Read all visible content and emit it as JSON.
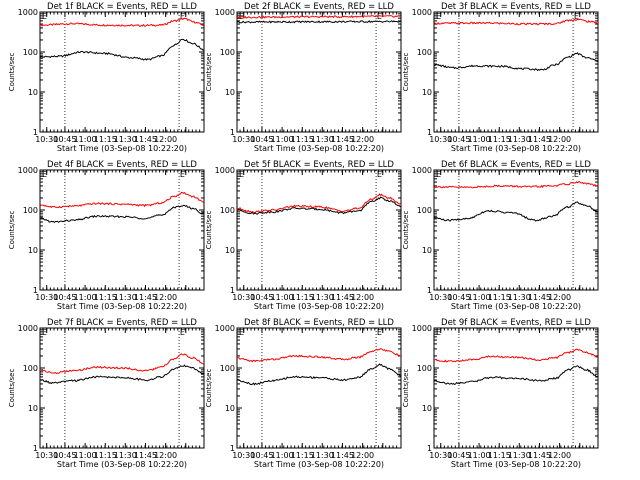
{
  "chart_data": [
    {
      "title": "Det 1f BLACK = Events, RED = LLD",
      "type": "line",
      "black": [
        [
          0,
          75
        ],
        [
          0.12,
          78
        ],
        [
          0.25,
          100
        ],
        [
          0.4,
          92
        ],
        [
          0.55,
          72
        ],
        [
          0.66,
          65
        ],
        [
          0.74,
          80
        ],
        [
          0.82,
          150
        ],
        [
          0.87,
          210
        ],
        [
          0.93,
          165
        ],
        [
          1,
          115
        ]
      ],
      "red": [
        [
          0,
          470
        ],
        [
          0.2,
          510
        ],
        [
          0.4,
          470
        ],
        [
          0.6,
          460
        ],
        [
          0.74,
          470
        ],
        [
          0.82,
          600
        ],
        [
          0.88,
          680
        ],
        [
          0.94,
          560
        ],
        [
          1,
          470
        ]
      ]
    },
    {
      "title": "Det 2f BLACK = Events, RED = LLD",
      "type": "line",
      "black": [
        [
          0,
          560
        ],
        [
          0.5,
          570
        ],
        [
          1,
          580
        ]
      ],
      "red": [
        [
          0,
          740
        ],
        [
          0.5,
          760
        ],
        [
          1,
          780
        ]
      ]
    },
    {
      "title": "Det 3f BLACK = Events, RED = LLD",
      "type": "line",
      "black": [
        [
          0,
          48
        ],
        [
          0.12,
          40
        ],
        [
          0.25,
          45
        ],
        [
          0.4,
          44
        ],
        [
          0.55,
          38
        ],
        [
          0.66,
          36
        ],
        [
          0.74,
          48
        ],
        [
          0.82,
          75
        ],
        [
          0.87,
          92
        ],
        [
          0.93,
          72
        ],
        [
          1,
          60
        ]
      ],
      "red": [
        [
          0,
          520
        ],
        [
          0.3,
          530
        ],
        [
          0.6,
          500
        ],
        [
          0.74,
          510
        ],
        [
          0.82,
          620
        ],
        [
          0.88,
          650
        ],
        [
          0.94,
          580
        ],
        [
          1,
          540
        ]
      ]
    },
    {
      "title": "Det 4f BLACK = Events, RED = LLD",
      "type": "line",
      "black": [
        [
          0,
          62
        ],
        [
          0.08,
          50
        ],
        [
          0.2,
          55
        ],
        [
          0.35,
          70
        ],
        [
          0.5,
          68
        ],
        [
          0.65,
          62
        ],
        [
          0.74,
          75
        ],
        [
          0.82,
          115
        ],
        [
          0.87,
          130
        ],
        [
          0.93,
          110
        ],
        [
          1,
          80
        ]
      ],
      "red": [
        [
          0,
          135
        ],
        [
          0.08,
          118
        ],
        [
          0.2,
          125
        ],
        [
          0.35,
          145
        ],
        [
          0.5,
          140
        ],
        [
          0.65,
          130
        ],
        [
          0.74,
          150
        ],
        [
          0.82,
          220
        ],
        [
          0.87,
          270
        ],
        [
          0.93,
          220
        ],
        [
          1,
          160
        ]
      ]
    },
    {
      "title": "Det 5f BLACK = Events, RED = LLD",
      "type": "line",
      "black": [
        [
          0,
          100
        ],
        [
          0.1,
          82
        ],
        [
          0.22,
          90
        ],
        [
          0.35,
          110
        ],
        [
          0.5,
          105
        ],
        [
          0.65,
          85
        ],
        [
          0.74,
          95
        ],
        [
          0.82,
          160
        ],
        [
          0.87,
          200
        ],
        [
          0.93,
          170
        ],
        [
          1,
          120
        ]
      ],
      "red": [
        [
          0,
          110
        ],
        [
          0.1,
          90
        ],
        [
          0.22,
          100
        ],
        [
          0.35,
          125
        ],
        [
          0.5,
          120
        ],
        [
          0.65,
          95
        ],
        [
          0.74,
          110
        ],
        [
          0.82,
          185
        ],
        [
          0.87,
          240
        ],
        [
          0.93,
          200
        ],
        [
          1,
          140
        ]
      ]
    },
    {
      "title": "Det 6f BLACK = Events, RED = LLD",
      "type": "line",
      "black": [
        [
          0,
          65
        ],
        [
          0.08,
          55
        ],
        [
          0.2,
          60
        ],
        [
          0.33,
          95
        ],
        [
          0.48,
          85
        ],
        [
          0.62,
          55
        ],
        [
          0.72,
          70
        ],
        [
          0.82,
          120
        ],
        [
          0.87,
          155
        ],
        [
          0.93,
          130
        ],
        [
          1,
          90
        ]
      ],
      "red": [
        [
          0,
          380
        ],
        [
          0.2,
          370
        ],
        [
          0.4,
          400
        ],
        [
          0.6,
          380
        ],
        [
          0.72,
          400
        ],
        [
          0.82,
          450
        ],
        [
          0.87,
          500
        ],
        [
          0.93,
          460
        ],
        [
          1,
          400
        ]
      ]
    },
    {
      "title": "Det 7f BLACK = Events, RED = LLD",
      "type": "line",
      "black": [
        [
          0,
          50
        ],
        [
          0.08,
          42
        ],
        [
          0.2,
          48
        ],
        [
          0.35,
          60
        ],
        [
          0.5,
          58
        ],
        [
          0.65,
          50
        ],
        [
          0.74,
          60
        ],
        [
          0.82,
          95
        ],
        [
          0.87,
          115
        ],
        [
          0.93,
          100
        ],
        [
          1,
          70
        ]
      ],
      "red": [
        [
          0,
          90
        ],
        [
          0.08,
          75
        ],
        [
          0.2,
          85
        ],
        [
          0.35,
          105
        ],
        [
          0.5,
          100
        ],
        [
          0.65,
          85
        ],
        [
          0.74,
          105
        ],
        [
          0.82,
          170
        ],
        [
          0.87,
          220
        ],
        [
          0.93,
          180
        ],
        [
          1,
          130
        ]
      ]
    },
    {
      "title": "Det 8f BLACK = Events, RED = LLD",
      "type": "line",
      "black": [
        [
          0,
          50
        ],
        [
          0.1,
          40
        ],
        [
          0.22,
          48
        ],
        [
          0.35,
          60
        ],
        [
          0.5,
          58
        ],
        [
          0.65,
          50
        ],
        [
          0.74,
          58
        ],
        [
          0.82,
          95
        ],
        [
          0.87,
          120
        ],
        [
          0.93,
          95
        ],
        [
          1,
          65
        ]
      ],
      "red": [
        [
          0,
          175
        ],
        [
          0.1,
          150
        ],
        [
          0.22,
          165
        ],
        [
          0.35,
          200
        ],
        [
          0.5,
          190
        ],
        [
          0.65,
          165
        ],
        [
          0.74,
          185
        ],
        [
          0.82,
          260
        ],
        [
          0.87,
          300
        ],
        [
          0.93,
          260
        ],
        [
          1,
          200
        ]
      ]
    },
    {
      "title": "Det 9f BLACK = Events, RED = LLD",
      "type": "line",
      "black": [
        [
          0,
          48
        ],
        [
          0.1,
          40
        ],
        [
          0.22,
          45
        ],
        [
          0.35,
          58
        ],
        [
          0.5,
          55
        ],
        [
          0.65,
          48
        ],
        [
          0.74,
          55
        ],
        [
          0.82,
          90
        ],
        [
          0.87,
          110
        ],
        [
          0.93,
          90
        ],
        [
          1,
          60
        ]
      ],
      "red": [
        [
          0,
          160
        ],
        [
          0.1,
          145
        ],
        [
          0.22,
          160
        ],
        [
          0.35,
          195
        ],
        [
          0.5,
          185
        ],
        [
          0.65,
          160
        ],
        [
          0.74,
          180
        ],
        [
          0.82,
          245
        ],
        [
          0.87,
          285
        ],
        [
          0.93,
          245
        ],
        [
          1,
          190
        ]
      ]
    }
  ],
  "axis": {
    "xlabel": "Start Time (03-Sep-08 10:22:20)",
    "ylabel": "Counts/sec",
    "x_ticks": [
      "10:30",
      "10:45",
      "11:00",
      "11:15",
      "11:30",
      "11:45",
      "12:00"
    ],
    "y_ticks": [
      "1",
      "10",
      "100",
      "1000"
    ],
    "yscale": "log",
    "ylim": [
      1,
      1000
    ]
  },
  "markers": {
    "e_label": "E",
    "vlines": [
      0.152,
      0.848
    ]
  },
  "colors": {
    "events": "#000000",
    "lld": "#ff0000"
  }
}
